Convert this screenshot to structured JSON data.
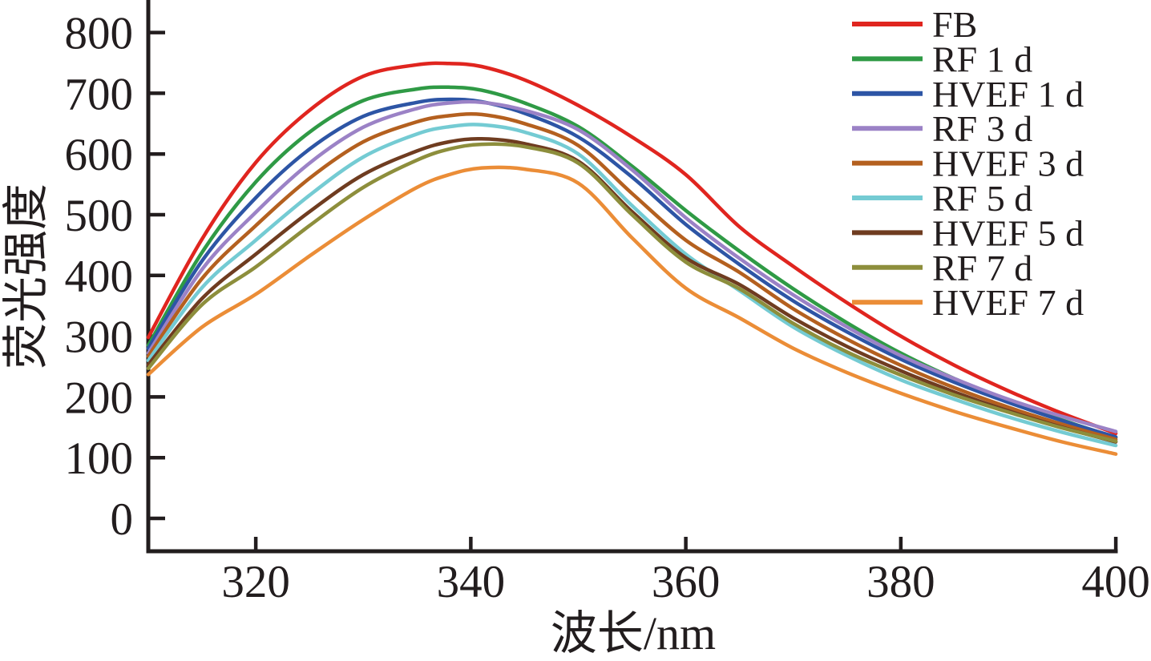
{
  "figure": {
    "background": "#ffffff",
    "text_color": "#221d1e"
  },
  "chart_data": {
    "type": "line",
    "title": "",
    "xlabel": "波长/nm",
    "ylabel": "荧光强度",
    "xlim": [
      310,
      400
    ],
    "ylim": [
      0,
      853
    ],
    "x_ticks": [
      320,
      340,
      360,
      380,
      400
    ],
    "y_ticks": [
      0,
      100,
      200,
      300,
      400,
      500,
      600,
      700,
      800
    ],
    "grid": false,
    "legend_position": "top-right",
    "x": [
      310,
      315,
      320,
      325,
      330,
      335,
      338,
      341,
      345,
      350,
      355,
      360,
      365,
      370,
      375,
      380,
      385,
      390,
      395,
      400
    ],
    "series": [
      {
        "name": "FB",
        "color": "#e0251f",
        "values": [
          298,
          460,
          586,
          672,
          728,
          747,
          749,
          744,
          722,
          680,
          628,
          566,
          480,
          415,
          355,
          300,
          252,
          210,
          173,
          140
        ]
      },
      {
        "name": "RF 1 d",
        "color": "#2f9a45",
        "values": [
          285,
          438,
          554,
          636,
          688,
          707,
          710,
          705,
          684,
          645,
          580,
          507,
          440,
          378,
          322,
          272,
          230,
          194,
          162,
          133
        ]
      },
      {
        "name": "HVEF 1 d",
        "color": "#2d55a5",
        "values": [
          280,
          424,
          528,
          608,
          662,
          685,
          690,
          686,
          667,
          628,
          562,
          484,
          418,
          358,
          307,
          262,
          224,
          191,
          161,
          134
        ]
      },
      {
        "name": "RF 3 d",
        "color": "#9b82c6",
        "values": [
          272,
          410,
          504,
          585,
          644,
          675,
          684,
          685,
          672,
          640,
          574,
          495,
          428,
          368,
          315,
          268,
          230,
          196,
          168,
          143
        ]
      },
      {
        "name": "HVEF 3 d",
        "color": "#b4601f",
        "values": [
          267,
          395,
          482,
          560,
          620,
          653,
          663,
          665,
          650,
          614,
          535,
          458,
          405,
          345,
          295,
          252,
          215,
          183,
          155,
          130
        ]
      },
      {
        "name": "RF 5 d",
        "color": "#74cbd3",
        "values": [
          260,
          380,
          458,
          532,
          595,
          633,
          645,
          648,
          636,
          600,
          515,
          435,
          375,
          315,
          268,
          228,
          196,
          167,
          142,
          120
        ]
      },
      {
        "name": "HVEF 5 d",
        "color": "#6f3c20",
        "values": [
          253,
          362,
          435,
          505,
          566,
          605,
          620,
          625,
          617,
          588,
          505,
          429,
          385,
          330,
          283,
          243,
          208,
          177,
          150,
          126
        ]
      },
      {
        "name": "RF 7 d",
        "color": "#8d8e3c",
        "values": [
          247,
          352,
          414,
          482,
          545,
          590,
          608,
          616,
          612,
          585,
          500,
          422,
          378,
          321,
          274,
          236,
          203,
          175,
          149,
          127
        ]
      },
      {
        "name": "HVEF 7 d",
        "color": "#eb8d37",
        "values": [
          237,
          315,
          369,
          432,
          492,
          545,
          566,
          577,
          575,
          552,
          462,
          379,
          330,
          280,
          240,
          206,
          176,
          150,
          126,
          106
        ]
      }
    ]
  }
}
